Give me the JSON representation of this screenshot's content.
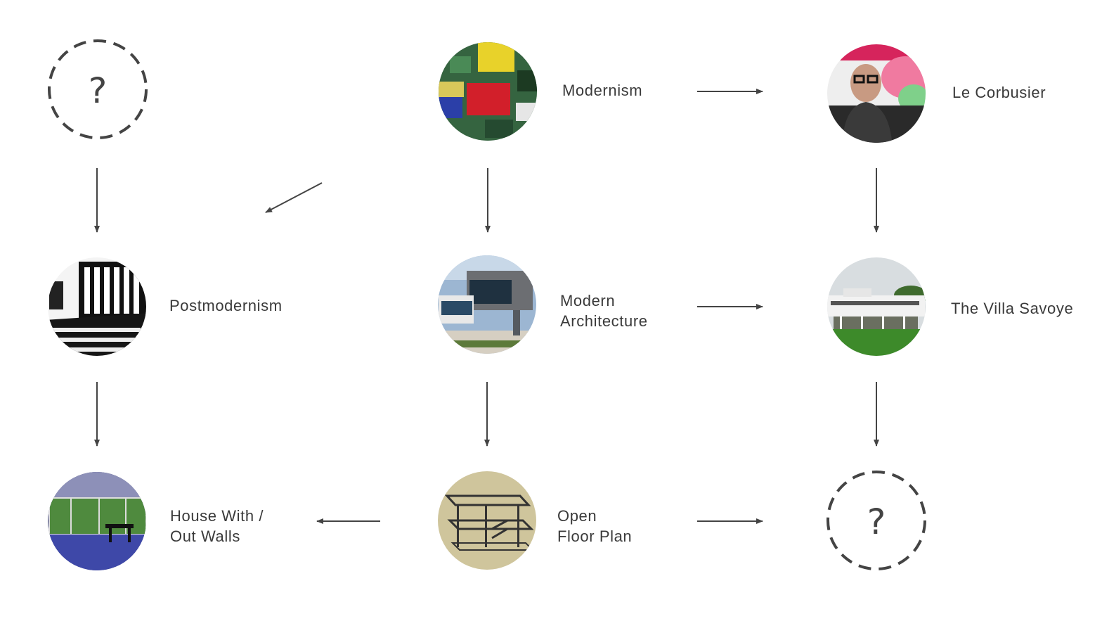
{
  "nodes": {
    "unknown_top": {
      "label": "?"
    },
    "modernism": {
      "label": "Modernism"
    },
    "le_corbusier": {
      "label": "Le Corbusier"
    },
    "postmodernism": {
      "label": "Postmodernism"
    },
    "modern_architecture": {
      "label_line1": "Modern",
      "label_line2": "Architecture"
    },
    "villa_savoye": {
      "label": "The Villa Savoye"
    },
    "house_without_walls": {
      "label_line1": "House With /",
      "label_line2": "Out Walls"
    },
    "open_floor_plan": {
      "label_line1": "Open",
      "label_line2": "Floor Plan"
    },
    "unknown_bottom": {
      "label": "?"
    }
  },
  "colors": {
    "arrow": "#444444",
    "text": "#3a3a3a",
    "dashed_circle": "#444444"
  }
}
